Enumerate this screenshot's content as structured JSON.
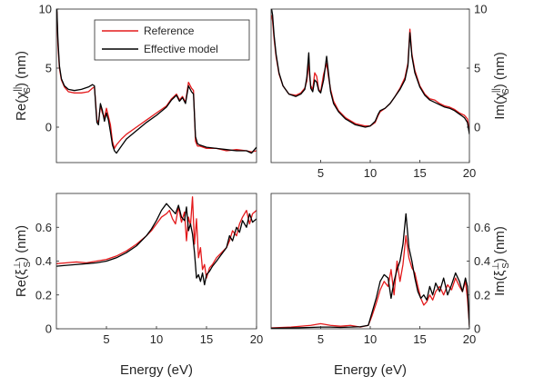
{
  "legend": {
    "entries": [
      {
        "name": "Reference",
        "color": "#e41a1c"
      },
      {
        "name": "Effective model",
        "color": "#000000"
      }
    ]
  },
  "chart_data": [
    {
      "type": "line",
      "panel": "top-left",
      "xlabel": "",
      "ylabel": "Re(χS||) (nm)",
      "ylabel_parts": {
        "main": "Re(",
        "sym": "χ",
        "sup": "||",
        "sub": "S",
        "tail": ") (nm)"
      },
      "xlim": [
        0,
        20
      ],
      "ylim": [
        -3,
        10
      ],
      "xticks": [],
      "yticks": [
        0,
        5,
        10
      ],
      "yaxis": "left",
      "series": [
        {
          "name": "Reference",
          "color": "#e41a1c",
          "x": [
            0.05,
            0.15,
            0.3,
            0.5,
            0.8,
            1.2,
            1.8,
            2.5,
            3.2,
            3.6,
            3.8,
            3.95,
            4.05,
            4.2,
            4.4,
            4.6,
            4.8,
            5.0,
            5.2,
            5.4,
            5.6,
            5.8,
            6.0,
            6.5,
            7,
            8,
            9,
            10,
            11,
            11.5,
            12,
            12.3,
            12.6,
            12.9,
            13.2,
            13.5,
            13.7,
            13.9,
            14.1,
            14.3,
            15,
            16,
            17,
            18,
            19,
            19.5,
            20
          ],
          "y": [
            9.8,
            7.0,
            5.0,
            4.0,
            3.4,
            3.0,
            2.9,
            2.9,
            3.0,
            3.3,
            3.4,
            1.8,
            0.6,
            0.4,
            1.8,
            1.2,
            0.8,
            1.6,
            0.9,
            0.2,
            -1.2,
            -1.8,
            -1.5,
            -1.0,
            -0.6,
            0.0,
            0.6,
            1.2,
            1.8,
            2.4,
            2.8,
            2.3,
            2.6,
            2.1,
            3.8,
            3.3,
            3.1,
            -1.2,
            -1.6,
            -1.6,
            -1.8,
            -1.8,
            -2.0,
            -1.9,
            -2.0,
            -2.1,
            -2.0
          ]
        },
        {
          "name": "Effective model",
          "color": "#000000",
          "x": [
            0.05,
            0.15,
            0.3,
            0.5,
            0.8,
            1.2,
            1.8,
            2.5,
            3.2,
            3.6,
            3.8,
            3.95,
            4.05,
            4.2,
            4.4,
            4.6,
            4.8,
            5.0,
            5.2,
            5.4,
            5.6,
            5.8,
            6.0,
            6.5,
            7,
            8,
            9,
            10,
            11,
            11.5,
            12,
            12.3,
            12.6,
            12.9,
            13.2,
            13.5,
            13.7,
            13.9,
            14.1,
            14.3,
            15,
            16,
            17,
            18,
            19,
            19.5,
            20
          ],
          "y": [
            10.0,
            7.5,
            5.2,
            4.1,
            3.5,
            3.2,
            3.1,
            3.2,
            3.4,
            3.6,
            3.5,
            1.5,
            0.4,
            0.2,
            2.0,
            1.4,
            0.5,
            1.2,
            0.6,
            -0.4,
            -1.5,
            -2.0,
            -2.2,
            -1.6,
            -1.0,
            -0.3,
            0.4,
            1.0,
            1.7,
            2.3,
            2.7,
            2.2,
            2.5,
            2.0,
            3.5,
            3.0,
            2.8,
            -0.8,
            -1.4,
            -1.5,
            -1.7,
            -1.8,
            -1.9,
            -2.0,
            -2.0,
            -2.2,
            -1.7
          ]
        }
      ]
    },
    {
      "type": "line",
      "panel": "top-right",
      "xlabel": "",
      "ylabel": "Im(χS||) (nm)",
      "ylabel_parts": {
        "main": "Im(",
        "sym": "χ",
        "sup": "||",
        "sub": "S",
        "tail": ") (nm)"
      },
      "xlim": [
        0,
        20
      ],
      "ylim": [
        -3,
        10
      ],
      "xticks": [
        5,
        10,
        15,
        20
      ],
      "yticks": [
        0,
        5,
        10
      ],
      "yaxis": "right",
      "series": [
        {
          "name": "Reference",
          "color": "#e41a1c",
          "x": [
            0.05,
            0.15,
            0.3,
            0.5,
            0.8,
            1.2,
            1.8,
            2.5,
            3.0,
            3.4,
            3.6,
            3.8,
            3.9,
            4.0,
            4.2,
            4.4,
            4.6,
            4.8,
            5.0,
            5.3,
            5.6,
            5.8,
            6.0,
            6.3,
            6.8,
            7.5,
            8.5,
            9.5,
            10.0,
            10.5,
            10.8,
            11.0,
            11.5,
            12,
            12.5,
            13,
            13.5,
            13.8,
            14.0,
            14.2,
            14.5,
            15,
            15.5,
            16,
            16.5,
            17,
            17.5,
            18,
            18.5,
            19,
            19.5,
            19.8,
            20
          ],
          "y": [
            9.5,
            9.0,
            7.5,
            6.0,
            4.5,
            3.5,
            2.8,
            2.7,
            2.9,
            3.3,
            3.9,
            5.5,
            4.2,
            3.5,
            3.2,
            4.6,
            4.3,
            3.2,
            3.0,
            4.5,
            5.4,
            4.2,
            3.2,
            2.2,
            1.4,
            0.8,
            0.3,
            0.1,
            0.1,
            0.4,
            1.0,
            1.3,
            1.6,
            2.0,
            2.6,
            3.3,
            4.2,
            5.4,
            8.3,
            6.2,
            4.8,
            3.5,
            2.8,
            2.4,
            2.3,
            2.0,
            1.8,
            1.7,
            1.5,
            1.2,
            1.0,
            0.7,
            -0.3
          ]
        },
        {
          "name": "Effective model",
          "color": "#000000",
          "x": [
            0.05,
            0.15,
            0.3,
            0.5,
            0.8,
            1.2,
            1.8,
            2.5,
            3.0,
            3.4,
            3.6,
            3.8,
            3.9,
            4.0,
            4.2,
            4.4,
            4.6,
            4.8,
            5.0,
            5.3,
            5.6,
            5.8,
            6.0,
            6.3,
            6.8,
            7.5,
            8.5,
            9.5,
            10.0,
            10.5,
            10.8,
            11.0,
            11.5,
            12,
            12.5,
            13,
            13.5,
            13.8,
            14.0,
            14.2,
            14.5,
            15,
            15.5,
            16,
            16.5,
            17,
            17.5,
            18,
            18.5,
            19,
            19.5,
            19.8,
            20
          ],
          "y": [
            10.0,
            9.5,
            7.8,
            6.2,
            4.6,
            3.5,
            2.8,
            2.6,
            2.8,
            3.2,
            4.2,
            6.3,
            4.5,
            3.3,
            3.0,
            4.0,
            3.8,
            3.1,
            2.9,
            4.0,
            6.0,
            4.5,
            3.0,
            2.0,
            1.3,
            0.7,
            0.2,
            0.0,
            0.1,
            0.5,
            1.1,
            1.4,
            1.6,
            2.0,
            2.6,
            3.2,
            4.0,
            5.2,
            8.0,
            6.0,
            4.6,
            3.4,
            2.7,
            2.3,
            2.1,
            1.9,
            1.7,
            1.6,
            1.4,
            1.1,
            0.8,
            0.4,
            -0.6
          ]
        }
      ]
    },
    {
      "type": "line",
      "panel": "bottom-left",
      "xlabel": "Energy (eV)",
      "ylabel": "Re(ξS⊥) (nm)",
      "ylabel_parts": {
        "main": "Re(",
        "sym": "ξ",
        "sup": "⊥",
        "sub": "S",
        "tail": ") (nm)"
      },
      "xlim": [
        0,
        20
      ],
      "ylim": [
        0,
        0.8
      ],
      "xticks": [
        5,
        10,
        15,
        20
      ],
      "yticks": [
        0,
        0.2,
        0.4,
        0.6
      ],
      "yaxis": "left",
      "series": [
        {
          "name": "Reference",
          "color": "#e41a1c",
          "x": [
            0,
            1,
            2,
            3,
            4,
            5,
            6,
            7,
            8,
            9,
            9.5,
            10,
            10.5,
            11,
            11.3,
            11.6,
            11.9,
            12.2,
            12.5,
            12.8,
            13.0,
            13.2,
            13.4,
            13.6,
            13.8,
            14.0,
            14.2,
            14.4,
            14.6,
            14.8,
            15.0,
            15.3,
            15.6,
            16,
            16.5,
            17,
            17.3,
            17.6,
            18,
            18.3,
            18.6,
            19,
            19.3,
            19.6,
            20
          ],
          "y": [
            0.385,
            0.39,
            0.395,
            0.39,
            0.4,
            0.41,
            0.43,
            0.46,
            0.5,
            0.55,
            0.58,
            0.62,
            0.66,
            0.68,
            0.7,
            0.65,
            0.62,
            0.72,
            0.63,
            0.69,
            0.52,
            0.66,
            0.61,
            0.78,
            0.5,
            0.65,
            0.42,
            0.48,
            0.35,
            0.38,
            0.3,
            0.36,
            0.38,
            0.42,
            0.45,
            0.48,
            0.52,
            0.58,
            0.55,
            0.62,
            0.66,
            0.7,
            0.62,
            0.68,
            0.7
          ]
        },
        {
          "name": "Effective model",
          "color": "#000000",
          "x": [
            0,
            1,
            2,
            3,
            4,
            5,
            6,
            7,
            8,
            9,
            9.5,
            10,
            10.5,
            11,
            11.3,
            11.6,
            11.9,
            12.2,
            12.5,
            12.8,
            13.0,
            13.2,
            13.4,
            13.6,
            13.8,
            14.0,
            14.2,
            14.4,
            14.6,
            14.8,
            15.0,
            15.3,
            15.6,
            16,
            16.5,
            17,
            17.3,
            17.6,
            18,
            18.3,
            18.6,
            19,
            19.3,
            19.6,
            20
          ],
          "y": [
            0.37,
            0.375,
            0.38,
            0.385,
            0.39,
            0.4,
            0.42,
            0.45,
            0.49,
            0.55,
            0.59,
            0.64,
            0.7,
            0.74,
            0.72,
            0.7,
            0.68,
            0.73,
            0.66,
            0.64,
            0.72,
            0.58,
            0.62,
            0.56,
            0.45,
            0.3,
            0.32,
            0.28,
            0.33,
            0.26,
            0.32,
            0.34,
            0.37,
            0.4,
            0.44,
            0.48,
            0.55,
            0.52,
            0.6,
            0.57,
            0.64,
            0.6,
            0.68,
            0.63,
            0.65
          ]
        }
      ]
    },
    {
      "type": "line",
      "panel": "bottom-right",
      "xlabel": "Energy (eV)",
      "ylabel": "Im(ξS⊥) (nm)",
      "ylabel_parts": {
        "main": "Im(",
        "sym": "ξ",
        "sup": "⊥",
        "sub": "S",
        "tail": ") (nm)"
      },
      "xlim": [
        0,
        20
      ],
      "ylim": [
        0,
        0.8
      ],
      "xticks": [
        5,
        10,
        15,
        20
      ],
      "yticks": [
        0,
        0.2,
        0.4,
        0.6
      ],
      "yaxis": "right",
      "series": [
        {
          "name": "Reference",
          "color": "#e41a1c",
          "x": [
            0,
            2,
            4,
            5,
            6,
            7,
            8,
            9,
            9.8,
            10.2,
            10.6,
            11.0,
            11.4,
            11.8,
            12.1,
            12.4,
            12.7,
            13.0,
            13.3,
            13.6,
            13.9,
            14.2,
            14.5,
            14.8,
            15.1,
            15.4,
            15.7,
            16.0,
            16.3,
            16.6,
            17.0,
            17.4,
            17.8,
            18.2,
            18.6,
            19.0,
            19.3,
            19.6,
            19.8,
            20
          ],
          "y": [
            0.005,
            0.01,
            0.02,
            0.03,
            0.02,
            0.015,
            0.02,
            0.01,
            0.02,
            0.08,
            0.15,
            0.23,
            0.28,
            0.25,
            0.35,
            0.2,
            0.4,
            0.28,
            0.38,
            0.55,
            0.42,
            0.36,
            0.33,
            0.25,
            0.18,
            0.14,
            0.16,
            0.2,
            0.17,
            0.22,
            0.25,
            0.2,
            0.26,
            0.23,
            0.3,
            0.25,
            0.22,
            0.28,
            0.18,
            0.02
          ]
        },
        {
          "name": "Effective model",
          "color": "#000000",
          "x": [
            0,
            2,
            4,
            5,
            6,
            7,
            8,
            9,
            9.8,
            10.2,
            10.6,
            11.0,
            11.4,
            11.8,
            12.1,
            12.4,
            12.7,
            13.0,
            13.3,
            13.6,
            13.9,
            14.2,
            14.5,
            14.8,
            15.1,
            15.4,
            15.7,
            16.0,
            16.3,
            16.6,
            17.0,
            17.4,
            17.8,
            18.2,
            18.6,
            19.0,
            19.3,
            19.6,
            19.8,
            20
          ],
          "y": [
            0.003,
            0.005,
            0.008,
            0.01,
            0.01,
            0.008,
            0.01,
            0.012,
            0.02,
            0.1,
            0.18,
            0.28,
            0.32,
            0.3,
            0.18,
            0.28,
            0.35,
            0.4,
            0.5,
            0.68,
            0.48,
            0.4,
            0.3,
            0.22,
            0.18,
            0.2,
            0.17,
            0.25,
            0.2,
            0.27,
            0.22,
            0.3,
            0.2,
            0.26,
            0.33,
            0.28,
            0.22,
            0.3,
            0.25,
            0.01
          ]
        }
      ]
    }
  ]
}
